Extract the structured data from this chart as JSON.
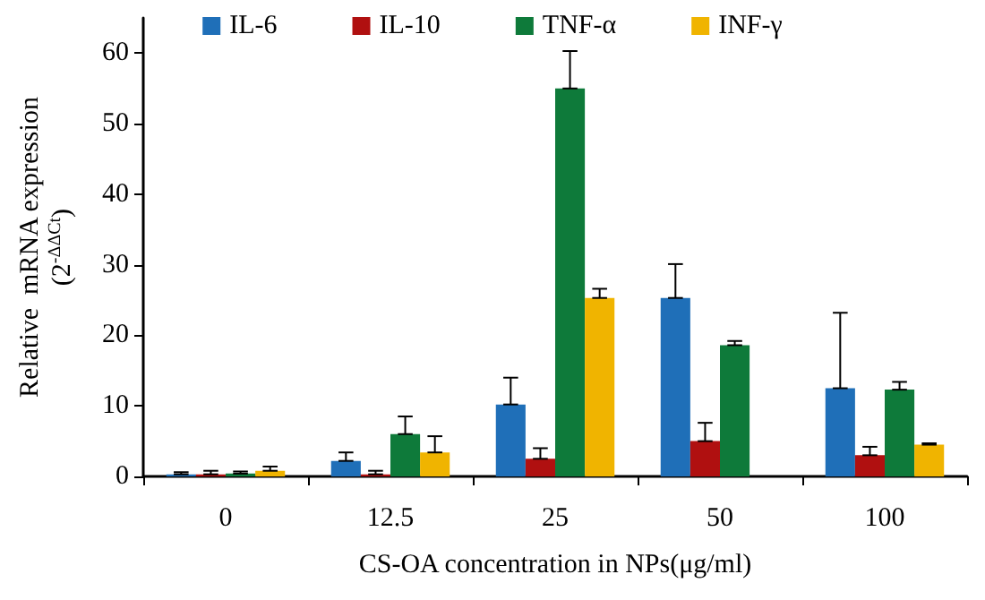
{
  "chart_data": {
    "type": "bar",
    "xlabel": "CS-OA concentration in NPs(μg/ml)",
    "ylabel": "Relative  mRNA expression\n(2$^{-ΔΔCt}$)",
    "categories": [
      "0",
      "12.5",
      "25",
      "50",
      "100"
    ],
    "ylim": [
      0,
      65
    ],
    "yticks": [
      0,
      10,
      20,
      30,
      40,
      50,
      60
    ],
    "grid": false,
    "legend": "top",
    "series": [
      {
        "name": "IL-6",
        "color": "#1f6fb8",
        "values": [
          0.3,
          2.2,
          10.2,
          25.3,
          12.5
        ],
        "errors": [
          [
            0.3,
            0.6
          ],
          [
            2.2,
            3.4
          ],
          [
            10.2,
            14.0
          ],
          [
            25.3,
            30.1
          ],
          [
            12.5,
            23.2
          ]
        ]
      },
      {
        "name": "IL-10",
        "color": "#b01010",
        "values": [
          0.3,
          0.3,
          2.5,
          5.0,
          3.0
        ],
        "errors": [
          [
            0.3,
            0.8
          ],
          [
            0.3,
            0.8
          ],
          [
            2.5,
            4.0
          ],
          [
            5.0,
            7.6
          ],
          [
            3.0,
            4.2
          ]
        ]
      },
      {
        "name": "TNF-α",
        "color": "#0e7a3a",
        "values": [
          0.4,
          6.0,
          55,
          18.6,
          12.3
        ],
        "errors": [
          [
            0.4,
            0.7
          ],
          [
            6.0,
            8.5
          ],
          [
            55,
            60.3
          ],
          [
            18.6,
            19.2
          ],
          [
            12.3,
            13.4
          ]
        ]
      },
      {
        "name": "INF-γ",
        "color": "#f0b400",
        "values": [
          0.8,
          3.4,
          25.3,
          null,
          4.5
        ],
        "errors": [
          [
            0.8,
            1.4
          ],
          [
            3.4,
            5.7
          ],
          [
            25.3,
            26.6
          ],
          null,
          [
            4.5,
            4.7
          ]
        ]
      }
    ]
  }
}
